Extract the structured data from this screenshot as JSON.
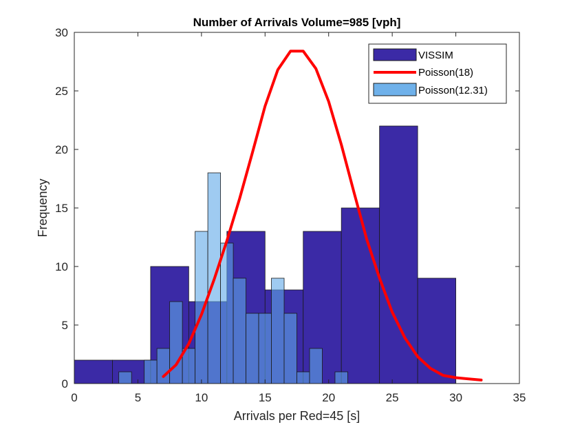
{
  "chart_data": {
    "type": "histogram",
    "title": "Number of Arrivals Volume=985 [vph]",
    "xlabel": "Arrivals per Red=45 [s]",
    "ylabel": "Frequency",
    "xlim": [
      0,
      35
    ],
    "ylim": [
      0,
      30
    ],
    "xticks": [
      0,
      5,
      10,
      15,
      20,
      25,
      30,
      35
    ],
    "yticks": [
      0,
      5,
      10,
      15,
      20,
      25,
      30
    ],
    "series": [
      {
        "name": "VISSIM",
        "kind": "histogram",
        "color": "#3b2aa6",
        "bins": [
          {
            "x0": 0,
            "x1": 3,
            "value": 2
          },
          {
            "x0": 3,
            "x1": 6,
            "value": 2
          },
          {
            "x0": 6,
            "x1": 9,
            "value": 10
          },
          {
            "x0": 9,
            "x1": 12,
            "value": 7
          },
          {
            "x0": 12,
            "x1": 15,
            "value": 13
          },
          {
            "x0": 15,
            "x1": 18,
            "value": 8
          },
          {
            "x0": 18,
            "x1": 21,
            "value": 13
          },
          {
            "x0": 21,
            "x1": 24,
            "value": 15
          },
          {
            "x0": 24,
            "x1": 27,
            "value": 22
          },
          {
            "x0": 27,
            "x1": 30,
            "value": 9
          }
        ]
      },
      {
        "name": "Poisson(18)",
        "kind": "line",
        "color": "#ff0000",
        "x": [
          7,
          8,
          9,
          10,
          11,
          12,
          13,
          14,
          15,
          16,
          17,
          18,
          19,
          20,
          21,
          22,
          23,
          24,
          25,
          26,
          27,
          28,
          29,
          30,
          31,
          32
        ],
        "y": [
          0.6,
          1.6,
          3.4,
          5.9,
          8.9,
          12.2,
          15.8,
          19.7,
          23.7,
          26.8,
          28.4,
          28.4,
          26.9,
          24.1,
          20.4,
          16.3,
          12.3,
          9.0,
          6.1,
          3.9,
          2.3,
          1.3,
          0.7,
          0.5,
          0.4,
          0.3
        ]
      },
      {
        "name": "Poisson(12.31)",
        "kind": "histogram",
        "color": "#5fa8e8",
        "bins": [
          {
            "x0": 3.5,
            "x1": 4.5,
            "value": 1
          },
          {
            "x0": 5.5,
            "x1": 6.5,
            "value": 2
          },
          {
            "x0": 6.5,
            "x1": 7.5,
            "value": 3
          },
          {
            "x0": 7.5,
            "x1": 8.5,
            "value": 7
          },
          {
            "x0": 8.5,
            "x1": 9.5,
            "value": 3
          },
          {
            "x0": 9.5,
            "x1": 10.5,
            "value": 13
          },
          {
            "x0": 10.5,
            "x1": 11.5,
            "value": 18
          },
          {
            "x0": 11.5,
            "x1": 12.5,
            "value": 12
          },
          {
            "x0": 12.5,
            "x1": 13.5,
            "value": 9
          },
          {
            "x0": 13.5,
            "x1": 14.5,
            "value": 6
          },
          {
            "x0": 14.5,
            "x1": 15.5,
            "value": 6
          },
          {
            "x0": 15.5,
            "x1": 16.5,
            "value": 9
          },
          {
            "x0": 16.5,
            "x1": 17.5,
            "value": 6
          },
          {
            "x0": 17.5,
            "x1": 18.5,
            "value": 1
          },
          {
            "x0": 18.5,
            "x1": 19.5,
            "value": 3
          },
          {
            "x0": 20.5,
            "x1": 21.5,
            "value": 1
          }
        ]
      }
    ],
    "legend": {
      "placement": "top-right",
      "entries": [
        "VISSIM",
        "Poisson(18)",
        "Poisson(12.31)"
      ]
    },
    "grid": false
  }
}
